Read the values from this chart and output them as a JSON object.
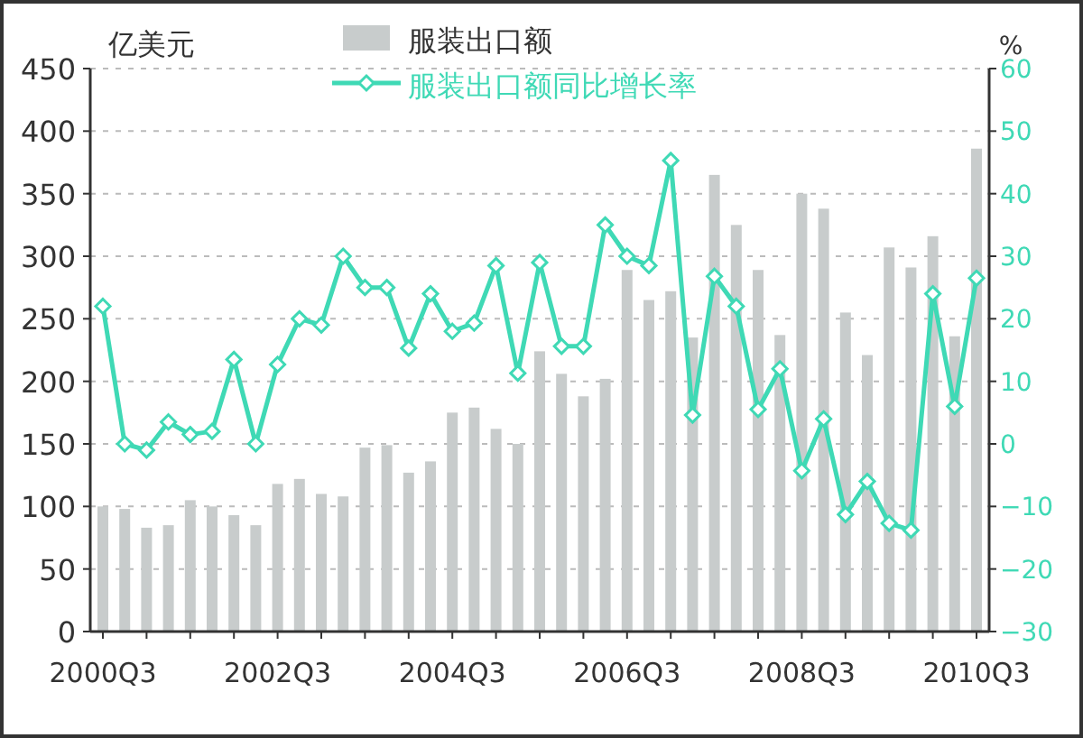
{
  "chart_data": {
    "type": "bar",
    "ylabel": "亿美元",
    "y2label": "%",
    "categories": [
      "2000Q3",
      null,
      null,
      null,
      null,
      null,
      null,
      null,
      "2002Q3",
      null,
      null,
      null,
      null,
      null,
      null,
      null,
      "2004Q3",
      null,
      null,
      null,
      null,
      null,
      null,
      null,
      "2006Q3",
      null,
      null,
      null,
      null,
      null,
      null,
      null,
      "2008Q3",
      null,
      null,
      null,
      null,
      null,
      null,
      null,
      "2010Q3"
    ],
    "series": [
      {
        "name": "服装出口额",
        "color": "#c8cccc",
        "values": [
          100,
          98,
          83,
          85,
          105,
          100,
          93,
          85,
          118,
          122,
          110,
          108,
          147,
          149,
          127,
          136,
          175,
          179,
          162,
          150,
          224,
          206,
          188,
          202,
          289,
          265,
          272,
          235,
          365,
          325,
          289,
          237,
          350,
          338,
          255,
          221,
          307,
          291,
          316,
          236,
          386
        ]
      },
      {
        "name": "服装出口额同比增长率",
        "type": "line",
        "axis": "y2",
        "color": "#3fd9b5",
        "marker": "diamond",
        "values": [
          22,
          0,
          -1,
          3.5,
          1.5,
          2,
          13.5,
          0,
          12.7,
          20,
          19,
          30,
          25,
          25,
          15.3,
          24,
          18,
          19.3,
          28.5,
          11.3,
          29,
          15.6,
          15.6,
          35,
          30,
          28.5,
          45.3,
          4.6,
          26.8,
          22,
          5.5,
          12,
          -4.3,
          4,
          -11.3,
          -6,
          -12.7,
          -13.8,
          24,
          6,
          26.5
        ]
      }
    ],
    "ylim": [
      0,
      450
    ],
    "yticks": [
      0,
      50,
      100,
      150,
      200,
      250,
      300,
      350,
      400,
      450
    ],
    "y2lim": [
      -30,
      60
    ],
    "y2ticks": [
      -30,
      -20,
      -10,
      0,
      10,
      20,
      30,
      40,
      50,
      60
    ],
    "grid": "y",
    "legend": "top"
  }
}
